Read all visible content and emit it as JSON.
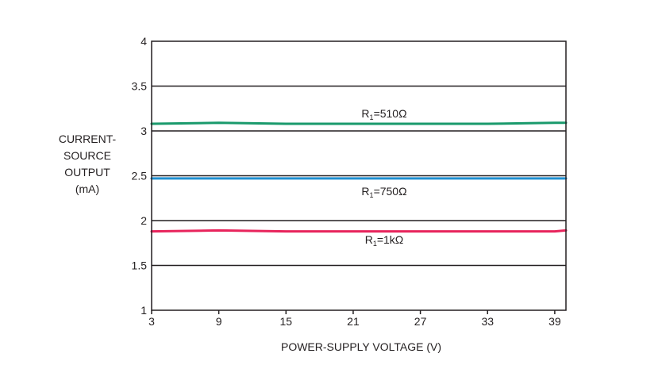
{
  "chart_data": {
    "type": "line",
    "title": "",
    "xlabel": "POWER-SUPPLY VOLTAGE (V)",
    "ylabel_lines": [
      "CURRENT-",
      "SOURCE",
      "OUTPUT",
      "(mA)"
    ],
    "xlim": [
      3,
      40
    ],
    "ylim": [
      1,
      4
    ],
    "x_ticks": [
      3,
      9,
      15,
      21,
      27,
      33,
      39
    ],
    "y_ticks": [
      1,
      1.5,
      2,
      2.5,
      3,
      3.5,
      4
    ],
    "y_tick_labels": [
      "1",
      "1.5",
      "2",
      "2.5",
      "3",
      "3.5",
      "4"
    ],
    "grid": "horizontal",
    "series": [
      {
        "label_main": "R",
        "label_sub": "1",
        "label_rest": "=510Ω",
        "color": "#1a9a6c",
        "x": [
          3,
          9,
          15,
          21,
          27,
          33,
          39,
          40
        ],
        "y": [
          3.08,
          3.09,
          3.08,
          3.08,
          3.08,
          3.08,
          3.09,
          3.09
        ]
      },
      {
        "label_main": "R",
        "label_sub": "1",
        "label_rest": "=750Ω",
        "color": "#1f8fd0",
        "x": [
          3,
          9,
          15,
          21,
          27,
          33,
          39,
          40
        ],
        "y": [
          2.47,
          2.47,
          2.47,
          2.47,
          2.47,
          2.47,
          2.47,
          2.47
        ]
      },
      {
        "label_main": "R",
        "label_sub": "1",
        "label_rest": "=1kΩ",
        "color": "#e8245c",
        "x": [
          3,
          9,
          15,
          21,
          27,
          33,
          39,
          40
        ],
        "y": [
          1.88,
          1.89,
          1.88,
          1.88,
          1.88,
          1.88,
          1.88,
          1.89
        ]
      }
    ]
  }
}
